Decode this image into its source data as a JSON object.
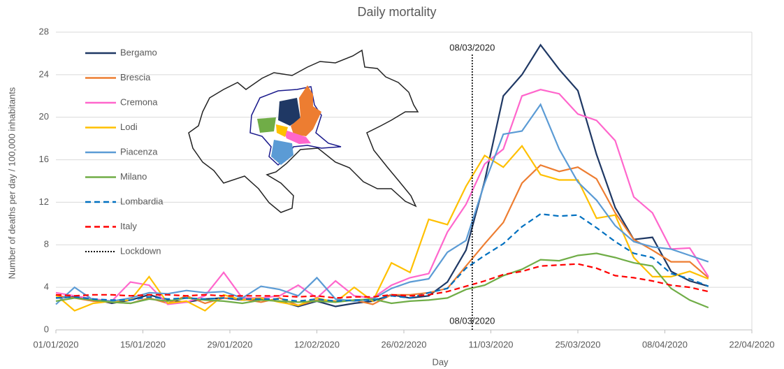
{
  "chart_data": {
    "type": "line",
    "title": "Daily mortality",
    "x_label": "Day",
    "y_label": "Number of deaths per day / 100,000 inhabitants",
    "x": [
      "2020-01-01",
      "2020-01-04",
      "2020-01-07",
      "2020-01-10",
      "2020-01-13",
      "2020-01-16",
      "2020-01-19",
      "2020-01-22",
      "2020-01-25",
      "2020-01-28",
      "2020-01-31",
      "2020-02-03",
      "2020-02-06",
      "2020-02-09",
      "2020-02-12",
      "2020-02-15",
      "2020-02-18",
      "2020-02-21",
      "2020-02-24",
      "2020-02-27",
      "2020-03-01",
      "2020-03-04",
      "2020-03-07",
      "2020-03-10",
      "2020-03-13",
      "2020-03-16",
      "2020-03-19",
      "2020-03-22",
      "2020-03-25",
      "2020-03-28",
      "2020-03-31",
      "2020-04-03",
      "2020-04-06",
      "2020-04-09",
      "2020-04-12",
      "2020-04-15"
    ],
    "series": [
      {
        "name": "Bergamo",
        "color": "#1f3864",
        "dashed": false,
        "values": [
          3.0,
          3.1,
          2.9,
          2.5,
          2.8,
          3.3,
          2.8,
          2.6,
          2.9,
          3.0,
          2.8,
          2.9,
          2.7,
          2.2,
          2.7,
          2.2,
          2.5,
          2.7,
          3.3,
          3.0,
          3.2,
          4.5,
          7.5,
          14.0,
          22.0,
          24.0,
          26.8,
          24.5,
          22.5,
          16.5,
          11.5,
          8.5,
          8.7,
          5.5,
          4.6,
          4.1
        ]
      },
      {
        "name": "Brescia",
        "color": "#ed7d31",
        "dashed": false,
        "values": [
          3.2,
          3.0,
          2.7,
          2.6,
          2.5,
          3.0,
          2.5,
          3.2,
          2.5,
          3.0,
          2.9,
          2.6,
          3.0,
          2.3,
          2.8,
          2.7,
          2.8,
          2.4,
          3.3,
          3.3,
          3.5,
          3.9,
          6.0,
          8.1,
          10.1,
          13.8,
          15.5,
          14.9,
          15.3,
          14.2,
          11.0,
          8.5,
          7.5,
          6.4,
          6.4,
          4.9
        ]
      },
      {
        "name": "Cremona",
        "color": "#ff66cc",
        "dashed": false,
        "values": [
          3.5,
          3.2,
          2.9,
          2.7,
          4.5,
          4.2,
          2.4,
          2.6,
          3.2,
          5.4,
          3.0,
          3.0,
          3.2,
          4.2,
          3.0,
          4.6,
          3.2,
          3.0,
          4.2,
          4.9,
          5.3,
          9.2,
          11.8,
          15.6,
          17.0,
          22.0,
          22.6,
          22.2,
          20.3,
          19.7,
          17.8,
          12.5,
          11.0,
          7.6,
          7.7,
          5.0
        ]
      },
      {
        "name": "Lodi",
        "color": "#ffc000",
        "dashed": false,
        "values": [
          3.3,
          1.8,
          2.5,
          2.7,
          2.8,
          5.0,
          2.5,
          2.7,
          1.8,
          3.3,
          2.8,
          3.0,
          2.6,
          2.3,
          3.0,
          2.6,
          4.0,
          2.7,
          6.3,
          5.4,
          10.4,
          9.9,
          13.5,
          16.4,
          15.3,
          17.3,
          14.6,
          14.1,
          14.1,
          10.5,
          10.8,
          6.8,
          5.0,
          5.0,
          5.5,
          4.8
        ]
      },
      {
        "name": "Piacenza",
        "color": "#5b9bd5",
        "dashed": false,
        "values": [
          2.4,
          4.0,
          2.8,
          2.7,
          3.0,
          3.5,
          3.4,
          3.7,
          3.5,
          3.6,
          3.0,
          4.1,
          3.8,
          3.2,
          4.9,
          2.9,
          2.7,
          2.9,
          3.9,
          4.5,
          4.8,
          7.3,
          8.4,
          13.8,
          18.4,
          18.7,
          21.2,
          17.0,
          13.9,
          12.2,
          9.8,
          8.3,
          7.8,
          7.6,
          7.0,
          6.4
        ]
      },
      {
        "name": "Milano",
        "color": "#70ad47",
        "dashed": false,
        "values": [
          2.7,
          3.0,
          2.8,
          2.6,
          2.5,
          2.9,
          2.7,
          3.0,
          2.8,
          2.7,
          2.5,
          2.8,
          2.7,
          2.6,
          2.7,
          2.6,
          2.8,
          2.9,
          2.5,
          2.7,
          2.8,
          3.0,
          3.8,
          4.2,
          5.1,
          5.7,
          6.6,
          6.5,
          7.0,
          7.2,
          6.8,
          6.3,
          6.0,
          3.9,
          2.8,
          2.1
        ]
      },
      {
        "name": "Lombardia",
        "color": "#0070c0",
        "dashed": true,
        "values": [
          3.0,
          3.1,
          2.9,
          2.8,
          2.8,
          3.1,
          2.9,
          3.0,
          2.9,
          3.0,
          2.9,
          2.9,
          2.9,
          2.7,
          2.9,
          2.7,
          2.8,
          2.8,
          3.2,
          3.0,
          3.5,
          3.9,
          5.8,
          7.0,
          8.1,
          9.7,
          10.9,
          10.7,
          10.8,
          9.6,
          8.3,
          7.2,
          6.8,
          5.3,
          4.8,
          4.1
        ]
      },
      {
        "name": "Italy",
        "color": "#ff0000",
        "dashed": true,
        "values": [
          3.3,
          3.2,
          3.3,
          3.3,
          3.2,
          3.3,
          3.3,
          3.2,
          3.3,
          3.2,
          3.2,
          3.2,
          3.2,
          3.1,
          3.2,
          3.0,
          3.1,
          3.1,
          3.3,
          3.2,
          3.3,
          3.6,
          4.1,
          4.6,
          5.2,
          5.5,
          6.0,
          6.1,
          6.2,
          5.8,
          5.1,
          4.9,
          4.6,
          4.2,
          4.0,
          3.6
        ]
      }
    ],
    "lockdown": {
      "name": "Lockdown",
      "date": "2020-03-08",
      "color": "#000000",
      "labels": [
        "08/03/2020",
        "08/03/2020"
      ]
    },
    "xlim": [
      "2020-01-01",
      "2020-04-22"
    ],
    "xticks": [
      {
        "value": "2020-01-01",
        "label": "01/01/2020"
      },
      {
        "value": "2020-01-15",
        "label": "15/01/2020"
      },
      {
        "value": "2020-01-29",
        "label": "29/01/2020"
      },
      {
        "value": "2020-02-12",
        "label": "12/02/2020"
      },
      {
        "value": "2020-02-26",
        "label": "26/02/2020"
      },
      {
        "value": "2020-03-11",
        "label": "11/03/2020"
      },
      {
        "value": "2020-03-25",
        "label": "25/03/2020"
      },
      {
        "value": "2020-04-08",
        "label": "08/04/2020"
      },
      {
        "value": "2020-04-22",
        "label": "22/04/2020"
      }
    ],
    "ylim": [
      0,
      28
    ],
    "yticks": [
      0,
      4,
      8,
      12,
      16,
      20,
      24,
      28
    ],
    "grid": true
  }
}
